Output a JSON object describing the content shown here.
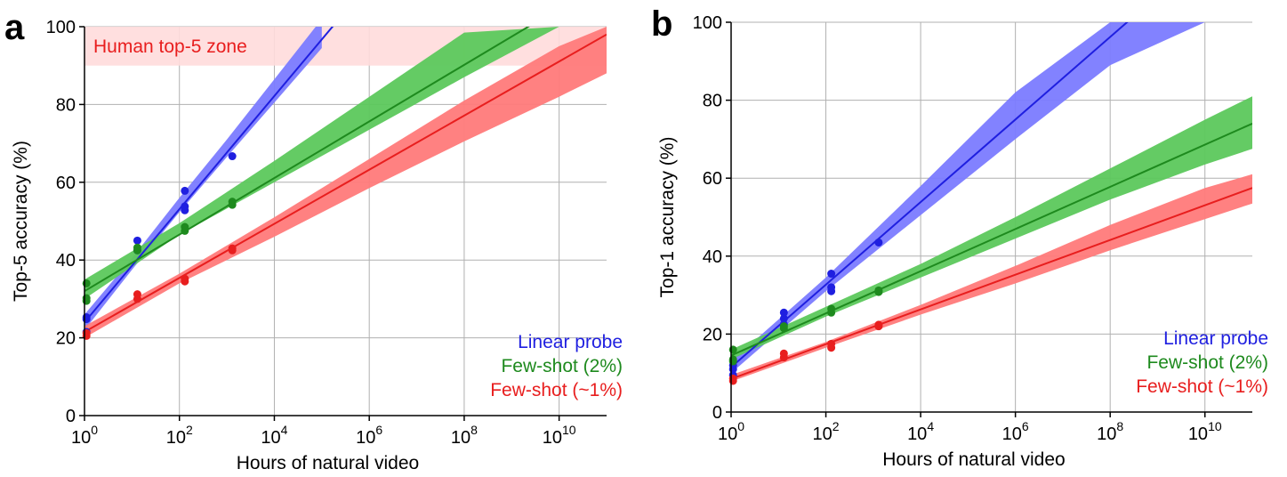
{
  "figure": {
    "panels": [
      "a",
      "b"
    ]
  },
  "colors": {
    "linear": "#1f1fe0",
    "linear_band": "#7b7bff",
    "few2": "#1e8a1e",
    "few2_band": "#5cc85c",
    "few1": "#e81e1e",
    "few1_band": "#ff7a7a",
    "human_zone": "#ffdcdc",
    "grid": "#b0b0b0"
  },
  "chart_data": [
    {
      "type": "scatter",
      "panel_letter": "a",
      "xlabel": "Hours of natural video",
      "ylabel": "Top-5 accuracy (%)",
      "xscale": "log",
      "xlim": [
        1,
        100000000000
      ],
      "ylim": [
        0,
        100
      ],
      "x_ticks": [
        1,
        100,
        10000,
        1000000,
        100000000,
        10000000000
      ],
      "x_tick_labels": [
        {
          "base": "10",
          "exp": "0"
        },
        {
          "base": "10",
          "exp": "2"
        },
        {
          "base": "10",
          "exp": "4"
        },
        {
          "base": "10",
          "exp": "6"
        },
        {
          "base": "10",
          "exp": "8"
        },
        {
          "base": "10",
          "exp": "10"
        }
      ],
      "y_ticks": [
        0,
        20,
        40,
        60,
        80,
        100
      ],
      "y_tick_labels": [
        "0",
        "20",
        "40",
        "60",
        "80",
        "100"
      ],
      "grid": true,
      "legend_position": "bottom-right",
      "human_zone": {
        "label": "Human top-5 zone",
        "y_range": [
          90,
          100
        ]
      },
      "series": [
        {
          "name": "Linear probe",
          "key": "linear",
          "points": [
            [
              1.1,
              21.5
            ],
            [
              1.1,
              24.8
            ],
            [
              1.1,
              25.3
            ],
            [
              13,
              42.5
            ],
            [
              13,
              45.0
            ],
            [
              130,
              52.8
            ],
            [
              130,
              53.8
            ],
            [
              130,
              57.8
            ],
            [
              1300,
              66.7
            ]
          ],
          "fit": {
            "x": [
              1,
              100000000000
            ],
            "y": [
              24.0,
              184.0
            ]
          },
          "band": {
            "x": [
              1,
              10,
              100,
              1000,
              10000,
              100000
            ],
            "lower": [
              22.0,
              37.5,
              52.3,
              66.5,
              80.5,
              94.5
            ],
            "upper": [
              26.0,
              40.5,
              56.0,
              71.0,
              86.5,
              102.0
            ]
          }
        },
        {
          "name": "Few-shot (2%)",
          "key": "few2",
          "points": [
            [
              1.1,
              29.5
            ],
            [
              1.1,
              30.2
            ],
            [
              1.1,
              34.0
            ],
            [
              13,
              42.5
            ],
            [
              13,
              43.2
            ],
            [
              130,
              47.5
            ],
            [
              130,
              48.5
            ],
            [
              1300,
              54.2
            ],
            [
              1300,
              55.0
            ]
          ],
          "fit": {
            "x": [
              1,
              100000000000
            ],
            "y": [
              32.0,
              112.0
            ]
          },
          "band": {
            "x": [
              1,
              100,
              10000,
              1000000,
              100000000,
              10000000000,
              100000000000
            ],
            "lower": [
              30.0,
              46.5,
              60.0,
              73.5,
              87.0,
              100.0,
              100.0
            ],
            "upper": [
              35.0,
              49.5,
              65.5,
              82.0,
              98.5,
              100.0,
              100.0
            ]
          }
        },
        {
          "name": "Few-shot (~1%)",
          "key": "few1",
          "points": [
            [
              1.1,
              20.5
            ],
            [
              1.1,
              21.2
            ],
            [
              13,
              30.0
            ],
            [
              13,
              31.2
            ],
            [
              130,
              34.5
            ],
            [
              130,
              35.2
            ],
            [
              1300,
              42.5
            ],
            [
              1300,
              43.0
            ]
          ],
          "fit": {
            "x": [
              1,
              100000000000
            ],
            "y": [
              21.5,
              98.0
            ]
          },
          "band": {
            "x": [
              1,
              100,
              10000,
              1000000,
              100000000,
              10000000000,
              100000000000
            ],
            "lower": [
              20.0,
              34.0,
              46.0,
              58.5,
              70.5,
              82.0,
              88.0
            ],
            "upper": [
              23.0,
              36.5,
              51.0,
              66.0,
              81.0,
              95.0,
              100.0
            ]
          }
        }
      ]
    },
    {
      "type": "scatter",
      "panel_letter": "b",
      "xlabel": "Hours of natural video",
      "ylabel": "Top-1 accuracy (%)",
      "xscale": "log",
      "xlim": [
        1,
        100000000000
      ],
      "ylim": [
        0,
        100
      ],
      "x_ticks": [
        1,
        100,
        10000,
        1000000,
        100000000,
        10000000000
      ],
      "x_tick_labels": [
        {
          "base": "10",
          "exp": "0"
        },
        {
          "base": "10",
          "exp": "2"
        },
        {
          "base": "10",
          "exp": "4"
        },
        {
          "base": "10",
          "exp": "6"
        },
        {
          "base": "10",
          "exp": "8"
        },
        {
          "base": "10",
          "exp": "10"
        }
      ],
      "y_ticks": [
        0,
        20,
        40,
        60,
        80,
        100
      ],
      "y_tick_labels": [
        "0",
        "20",
        "40",
        "60",
        "80",
        "100"
      ],
      "grid": true,
      "legend_position": "bottom-right",
      "series": [
        {
          "name": "Linear probe",
          "key": "linear",
          "points": [
            [
              1.1,
              9.5
            ],
            [
              1.1,
              11.0
            ],
            [
              1.1,
              12.0
            ],
            [
              13,
              22.5
            ],
            [
              13,
              24.0
            ],
            [
              13,
              25.5
            ],
            [
              130,
              31.0
            ],
            [
              130,
              32.0
            ],
            [
              130,
              35.5
            ],
            [
              1300,
              43.5
            ]
          ],
          "fit": {
            "x": [
              1,
              100000000000
            ],
            "y": [
              11.5,
              128.0
            ]
          },
          "band": {
            "x": [
              1,
              100,
              10000,
              1000000,
              100000000,
              10000000000,
              100000000000
            ],
            "lower": [
              10.0,
              31.0,
              50.5,
              70.0,
              89.0,
              100.0,
              100.0
            ],
            "upper": [
              13.0,
              34.5,
              58.0,
              82.0,
              100.0,
              100.0,
              100.0
            ]
          }
        },
        {
          "name": "Few-shot (2%)",
          "key": "few2",
          "points": [
            [
              1.1,
              13.0
            ],
            [
              1.1,
              13.5
            ],
            [
              1.1,
              16.0
            ],
            [
              13,
              21.5
            ],
            [
              13,
              22.0
            ],
            [
              130,
              25.5
            ],
            [
              130,
              26.5
            ],
            [
              1300,
              30.8
            ],
            [
              1300,
              31.2
            ]
          ],
          "fit": {
            "x": [
              1,
              100000000000
            ],
            "y": [
              14.5,
              74.0
            ]
          },
          "band": {
            "x": [
              1,
              100,
              10000,
              1000000,
              100000000,
              10000000000,
              100000000000
            ],
            "lower": [
              13.5,
              24.5,
              34.5,
              44.5,
              54.5,
              63.5,
              67.5
            ],
            "upper": [
              16.0,
              27.0,
              38.0,
              50.0,
              62.5,
              75.0,
              81.0
            ]
          }
        },
        {
          "name": "Few-shot (~1%)",
          "key": "few1",
          "points": [
            [
              1.1,
              8.0
            ],
            [
              1.1,
              8.6
            ],
            [
              13,
              14.0
            ],
            [
              13,
              15.0
            ],
            [
              130,
              16.5
            ],
            [
              130,
              17.5
            ],
            [
              1300,
              22.0
            ],
            [
              1300,
              22.4
            ]
          ],
          "fit": {
            "x": [
              1,
              100000000000
            ],
            "y": [
              8.5,
              57.5
            ]
          },
          "band": {
            "x": [
              1,
              100,
              10000,
              1000000,
              100000000,
              10000000000,
              100000000000
            ],
            "lower": [
              7.8,
              16.5,
              25.0,
              33.0,
              41.5,
              49.5,
              53.5
            ],
            "upper": [
              9.5,
              18.0,
              27.5,
              37.5,
              48.0,
              57.5,
              61.0
            ]
          }
        }
      ]
    }
  ]
}
